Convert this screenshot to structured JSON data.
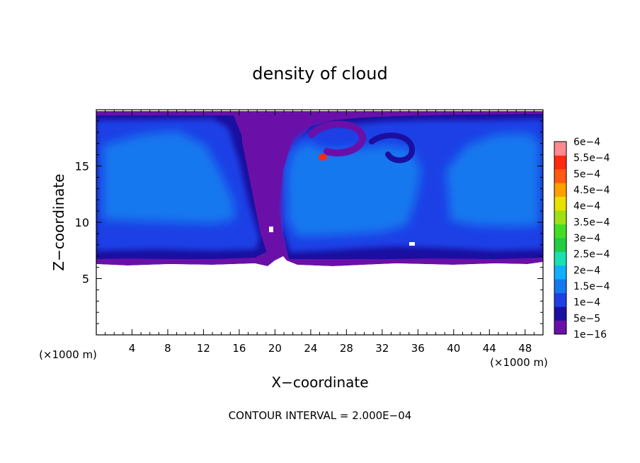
{
  "chart_data": {
    "type": "heatmap",
    "title": "density of cloud",
    "xlabel": "X−coordinate",
    "ylabel": "Z−coordinate",
    "x_unit": "(×1000 m)",
    "z_unit": "(×1000 m)",
    "xlim": [
      0,
      50
    ],
    "ylim": [
      0,
      20
    ],
    "x_ticks": [
      4,
      8,
      12,
      16,
      20,
      24,
      28,
      32,
      36,
      40,
      44,
      48
    ],
    "x_tick_labels": [
      "4",
      "8",
      "12",
      "16",
      "20",
      "24",
      "28",
      "32",
      "36",
      "40",
      "44",
      "48"
    ],
    "y_ticks": [
      5,
      10,
      15
    ],
    "y_tick_labels": [
      "5",
      "10",
      "15"
    ],
    "footer": "CONTOUR INTERVAL = 2.000E−04",
    "colorbar": {
      "levels": [
        "1e−16",
        "5e−5",
        "1e−4",
        "1.5e−4",
        "2e−4",
        "2.5e−4",
        "3e−4",
        "3.5e−4",
        "4e−4",
        "4.5e−4",
        "5e−4",
        "5.5e−4",
        "6e−4"
      ],
      "colors": [
        "#6a10a8",
        "#1a0fa0",
        "#1f3fe6",
        "#1478ef",
        "#10b0ff",
        "#18e0b0",
        "#22cc44",
        "#44dd22",
        "#9ee014",
        "#e8e000",
        "#ffa000",
        "#ff5a10",
        "#ff2a10",
        "#ff8a90"
      ]
    },
    "field_summary": {
      "cloud_base_z": 6.5,
      "cloud_top_z": 20,
      "clear_below_base": true,
      "dry_slot_x": [
        19,
        22
      ],
      "core_value_range": [
        "1e−4",
        "1.5e−4"
      ]
    }
  }
}
